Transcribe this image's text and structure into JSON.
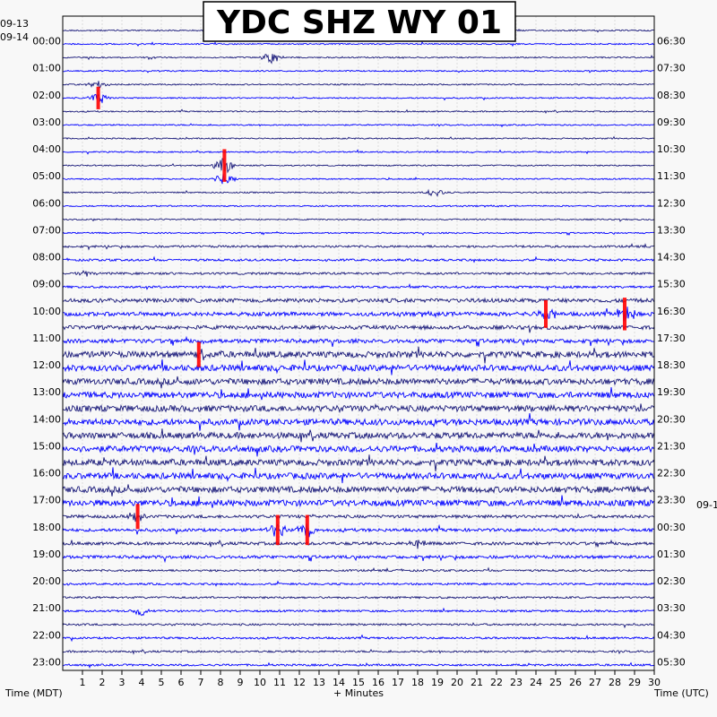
{
  "chart_data": {
    "type": "line",
    "title": "YDC SHZ WY 01",
    "xlabel": "+ Minutes",
    "left_axis_title": "Time (MDT)",
    "right_axis_title": "Time (UTC)",
    "xlim": [
      0,
      30
    ],
    "x_ticks": [
      1,
      2,
      3,
      4,
      5,
      6,
      7,
      8,
      9,
      10,
      11,
      12,
      13,
      14,
      15,
      16,
      17,
      18,
      19,
      20,
      21,
      22,
      23,
      24,
      25,
      26,
      27,
      28,
      29,
      30
    ],
    "left_date_start": "09-13",
    "left_date_next": "09-14",
    "right_date_next": "09-1",
    "left_hour_labels": [
      "00:00",
      "01:00",
      "02:00",
      "03:00",
      "04:00",
      "05:00",
      "06:00",
      "07:00",
      "08:00",
      "09:00",
      "10:00",
      "11:00",
      "12:00",
      "13:00",
      "14:00",
      "15:00",
      "16:00",
      "17:00",
      "18:00",
      "19:00",
      "20:00",
      "21:00",
      "22:00",
      "23:00"
    ],
    "right_hour_labels": [
      "06:30",
      "07:30",
      "08:30",
      "09:30",
      "10:30",
      "11:30",
      "12:30",
      "13:30",
      "14:30",
      "15:30",
      "16:30",
      "17:30",
      "18:30",
      "19:30",
      "20:30",
      "21:30",
      "22:30",
      "23:30",
      "00:30",
      "01:30",
      "02:30",
      "03:30",
      "04:30",
      "05:30"
    ],
    "trace_count": 48,
    "minutes_per_trace": 30,
    "trace_colors": [
      "#1a1a7a",
      "#0000ff"
    ],
    "clip_color": "#ff0000",
    "events": [
      {
        "trace": 2,
        "minute": 10.6,
        "amp": 1.6
      },
      {
        "trace": 4,
        "minute": 1.8,
        "amp": 1.4
      },
      {
        "trace": 5,
        "minute": 1.8,
        "amp": 1.8
      },
      {
        "trace": 10,
        "minute": 8.2,
        "amp": 2.6
      },
      {
        "trace": 11,
        "minute": 8.2,
        "amp": 1.6
      },
      {
        "trace": 12,
        "minute": 18.9,
        "amp": 1.2
      },
      {
        "trace": 18,
        "minute": 1.2,
        "amp": 1.0
      },
      {
        "trace": 21,
        "minute": 24.5,
        "amp": 2.2
      },
      {
        "trace": 21,
        "minute": 28.5,
        "amp": 2.6
      },
      {
        "trace": 24,
        "minute": 6.9,
        "amp": 2.0
      },
      {
        "trace": 36,
        "minute": 3.8,
        "amp": 2.0
      },
      {
        "trace": 37,
        "minute": 10.9,
        "amp": 2.4
      },
      {
        "trace": 37,
        "minute": 12.4,
        "amp": 2.4
      },
      {
        "trace": 38,
        "minute": 18.0,
        "amp": 1.2
      },
      {
        "trace": 43,
        "minute": 4.0,
        "amp": 1.2
      }
    ],
    "grid": true
  }
}
